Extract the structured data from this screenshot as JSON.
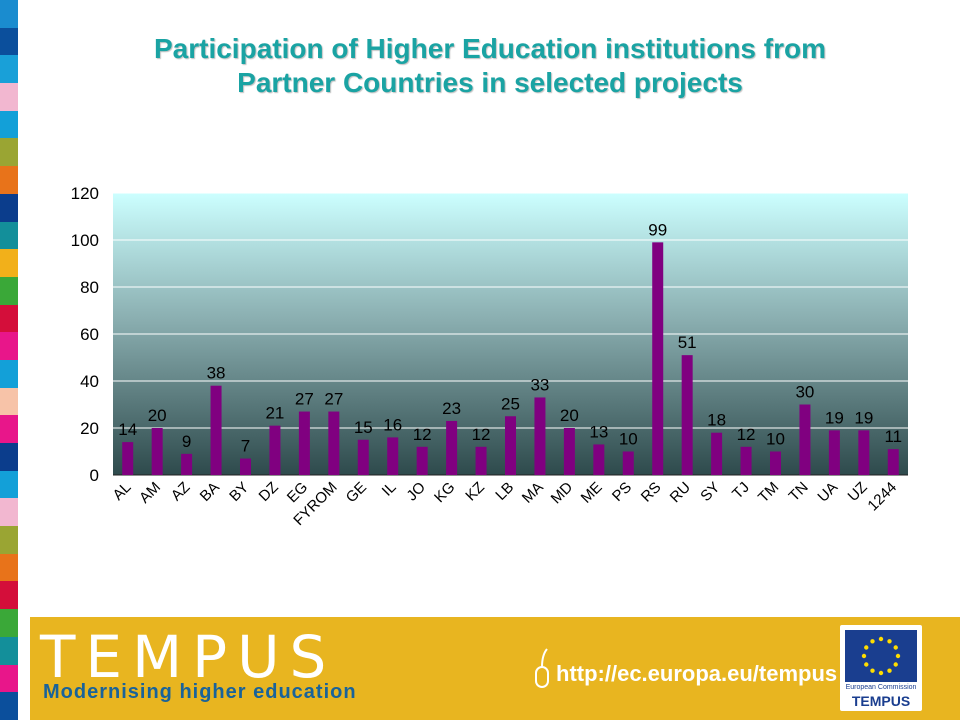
{
  "title": {
    "line1": "Participation of Higher Education institutions from",
    "line2": "Partner Countries in selected projects"
  },
  "chart_data": {
    "type": "bar",
    "title": "",
    "xlabel": "",
    "ylabel": "",
    "ylim": [
      0,
      120
    ],
    "yticks": [
      0,
      20,
      40,
      60,
      80,
      100,
      120
    ],
    "grid": true,
    "legend": "none",
    "categories": [
      "AL",
      "AM",
      "AZ",
      "BA",
      "BY",
      "DZ",
      "EG",
      "FYROM",
      "GE",
      "IL",
      "JO",
      "KG",
      "KZ",
      "LB",
      "MA",
      "MD",
      "ME",
      "PS",
      "RS",
      "RU",
      "SY",
      "TJ",
      "TM",
      "TN",
      "UA",
      "UZ",
      "1244"
    ],
    "values": [
      14,
      20,
      9,
      38,
      7,
      21,
      27,
      27,
      15,
      16,
      12,
      23,
      12,
      25,
      33,
      20,
      13,
      10,
      99,
      51,
      18,
      12,
      10,
      30,
      19,
      19,
      11
    ],
    "colors": {
      "bar": "#800080",
      "plot_top": "#ccffff",
      "plot_bottom": "#2e4a4c"
    }
  },
  "footer": {
    "brand": "TEMPUS",
    "tagline": "Modernising higher education",
    "url": "http://ec.europa.eu/tempus",
    "ec_label": "European Commission",
    "ec_program": "TEMPUS",
    "colors": {
      "band": "#e8b520",
      "tagline": "#19639a",
      "flag": "#1a3e8f",
      "stars": "#ffdd00"
    }
  },
  "stripe_colors": [
    "#1a8ccf",
    "#0b4f9c",
    "#19a0d8",
    "#f2b7d0",
    "#13a0d8",
    "#9aa533",
    "#e8731a",
    "#0b3d8c",
    "#138f9a",
    "#f2b01a",
    "#3aa838",
    "#d40e3a",
    "#e8168a",
    "#13a0d8",
    "#f7c3a8",
    "#e8168a",
    "#0b3d8c",
    "#13a0d8",
    "#f2b7d0",
    "#9aa533",
    "#e8731a",
    "#d40e3a",
    "#3aa838",
    "#138f9a",
    "#e8168a",
    "#0b4f9c"
  ]
}
